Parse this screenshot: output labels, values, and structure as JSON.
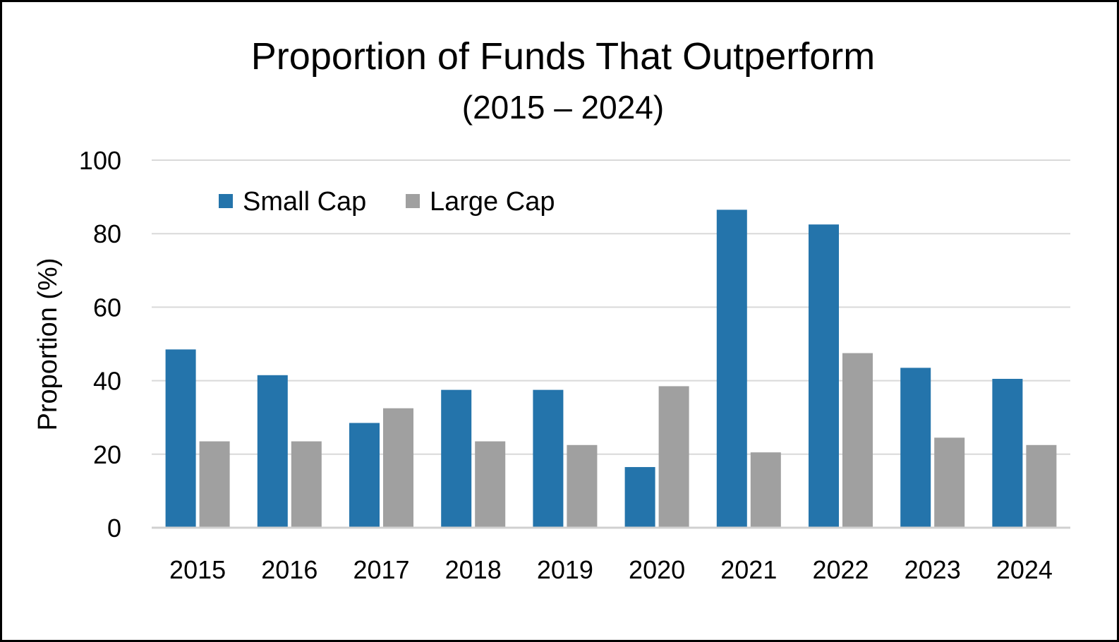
{
  "chart_data": {
    "type": "bar",
    "title": "Proportion of Funds That Outperform",
    "subtitle": "(2015 – 2024)",
    "xlabel": "",
    "ylabel": "Proportion (%)",
    "ylim": [
      0,
      100
    ],
    "yticks": [
      0,
      20,
      40,
      60,
      80,
      100
    ],
    "ytick_labels": [
      "0",
      "20",
      "40",
      "60",
      "80",
      "100"
    ],
    "grid": true,
    "legend_position": "top-left",
    "categories": [
      "2015",
      "2016",
      "2017",
      "2018",
      "2019",
      "2020",
      "2021",
      "2022",
      "2023",
      "2024"
    ],
    "series": [
      {
        "name": "Small Cap",
        "color": "#2474AB",
        "values": [
          48.5,
          41.5,
          28.5,
          37.5,
          37.5,
          16.5,
          86.5,
          82.5,
          43.5,
          40.5
        ]
      },
      {
        "name": "Large Cap",
        "color": "#A0A0A0",
        "values": [
          23.5,
          23.5,
          32.5,
          23.5,
          22.5,
          38.5,
          20.5,
          47.5,
          24.5,
          22.5
        ]
      }
    ]
  },
  "colors": {
    "gridline": "#D9D9D9",
    "axis": "#D0D0D0",
    "border": "#000000"
  }
}
